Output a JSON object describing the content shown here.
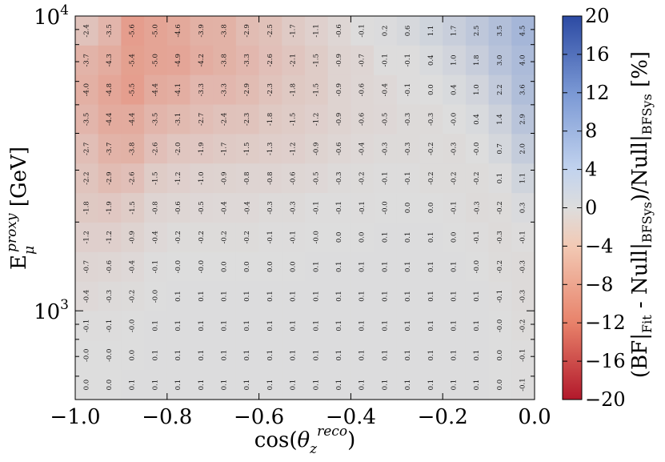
{
  "chart_data": {
    "type": "heatmap",
    "xlabel": "cos(θ_z^reco)",
    "ylabel": "E_μ^proxy [GeV]",
    "colorbar_label": "(BF|Fit - Null|BFSys)/Null|BFSys [%]",
    "x_ticks": [
      "−1.0",
      "−0.8",
      "−0.6",
      "−0.4",
      "−0.2",
      "0.0"
    ],
    "x_tick_values": [
      -1.0,
      -0.8,
      -0.6,
      -0.4,
      -0.2,
      0.0
    ],
    "y_ticks": [
      {
        "base": "10",
        "exp": "3",
        "value": 1000
      },
      {
        "base": "10",
        "exp": "4",
        "value": 10000
      }
    ],
    "xlim": [
      -1.0,
      0.0
    ],
    "ylim": [
      500,
      10000
    ],
    "y_scale": "log",
    "colorbar_ticks": [
      "20",
      "16",
      "12",
      "8",
      "4",
      "0",
      "−4",
      "−8",
      "−12",
      "−16",
      "−20"
    ],
    "colorbar_range": [
      -20,
      20
    ],
    "colormap": {
      "low": "#b2182b",
      "mid": "#dddddd",
      "high": "#2c4aa3"
    },
    "grid": false,
    "rows_top_to_bottom": [
      [
        "-2.4",
        "-3.5",
        "-5.6",
        "-5.0",
        "-4.6",
        "-3.9",
        "-3.8",
        "-2.9",
        "-2.5",
        "-1.7",
        "-1.1",
        "-0.6",
        "-0.1",
        "0.2",
        "0.6",
        "1.1",
        "1.7",
        "2.5",
        "3.5",
        "4.5"
      ],
      [
        "-3.7",
        "-4.3",
        "-5.4",
        "-5.0",
        "-4.9",
        "-4.2",
        "-3.8",
        "-3.3",
        "-2.6",
        "-2.1",
        "-1.5",
        "-0.9",
        "-0.7",
        "-0.1",
        "-0.1",
        "0.4",
        "1.0",
        "1.8",
        "3.0",
        "4.0"
      ],
      [
        "-4.0",
        "-4.8",
        "-5.5",
        "-4.4",
        "-4.1",
        "-3.3",
        "-3.3",
        "-2.9",
        "-2.3",
        "-1.8",
        "-1.5",
        "-0.9",
        "-0.6",
        "-0.4",
        "-0.1",
        "0.0",
        "0.4",
        "1.0",
        "2.2",
        "3.6"
      ],
      [
        "-3.5",
        "-4.4",
        "-4.4",
        "-3.5",
        "-3.1",
        "-2.7",
        "-2.4",
        "-2.3",
        "-1.8",
        "-1.5",
        "-1.2",
        "-0.9",
        "-0.6",
        "-0.5",
        "-0.3",
        "-0.3",
        "-0.0",
        "0.4",
        "1.4",
        "2.9"
      ],
      [
        "-2.7",
        "-3.7",
        "-3.8",
        "-2.6",
        "-2.0",
        "-1.9",
        "-1.7",
        "-1.5",
        "-1.3",
        "-1.2",
        "-0.9",
        "-0.6",
        "-0.4",
        "-0.3",
        "-0.3",
        "-0.2",
        "-0.3",
        "-0.0",
        "0.7",
        "2.0"
      ],
      [
        "-2.2",
        "-2.9",
        "-2.6",
        "-1.5",
        "-1.2",
        "-1.0",
        "-0.9",
        "-0.8",
        "-0.8",
        "-0.6",
        "-0.5",
        "-0.3",
        "-0.2",
        "-0.1",
        "-0.1",
        "-0.2",
        "-0.2",
        "-0.2",
        "0.1",
        "1.1"
      ],
      [
        "-1.8",
        "-1.9",
        "-1.5",
        "-0.8",
        "-0.6",
        "-0.5",
        "-0.4",
        "-0.4",
        "-0.3",
        "-0.3",
        "-0.1",
        "-0.1",
        "-0.1",
        "-0.0",
        "0.0",
        "0.0",
        "-0.1",
        "-0.3",
        "-0.2",
        "0.3"
      ],
      [
        "-1.2",
        "-1.2",
        "-0.9",
        "-0.4",
        "-0.2",
        "-0.2",
        "-0.2",
        "-0.2",
        "-0.1",
        "-0.1",
        "-0.0",
        "0.0",
        "0.0",
        "0.1",
        "0.1",
        "0.1",
        "0.0",
        "-0.1",
        "-0.3",
        "-0.1"
      ],
      [
        "-0.7",
        "-0.6",
        "-0.4",
        "-0.1",
        "-0.0",
        "-0.0",
        "0.0",
        "0.0",
        "0.0",
        "0.0",
        "0.1",
        "0.1",
        "0.1",
        "0.1",
        "0.1",
        "0.1",
        "0.1",
        "-0.0",
        "-0.2",
        "-0.3"
      ],
      [
        "-0.4",
        "-0.3",
        "-0.2",
        "-0.0",
        "0.1",
        "0.1",
        "0.1",
        "0.1",
        "0.1",
        "0.1",
        "0.1",
        "0.1",
        "0.1",
        "0.1",
        "0.1",
        "0.1",
        "0.1",
        "0.1",
        "-0.1",
        "-0.3"
      ],
      [
        "-0.1",
        "-0.1",
        "-0.0",
        "0.1",
        "0.1",
        "0.1",
        "0.1",
        "0.1",
        "0.1",
        "0.1",
        "0.1",
        "0.1",
        "0.1",
        "0.1",
        "0.1",
        "0.1",
        "0.1",
        "0.1",
        "-0.0",
        "-0.2"
      ],
      [
        "-0.0",
        "-0.0",
        "0.0",
        "0.1",
        "0.1",
        "0.1",
        "0.1",
        "0.1",
        "0.1",
        "0.1",
        "0.1",
        "0.1",
        "0.1",
        "0.1",
        "0.1",
        "0.1",
        "0.1",
        "0.1",
        "0.0",
        "-0.1"
      ],
      [
        "0.0",
        "0.0",
        "0.1",
        "0.1",
        "0.1",
        "0.1",
        "0.1",
        "0.1",
        "0.1",
        "0.1",
        "0.1",
        "0.1",
        "0.1",
        "0.1",
        "0.1",
        "0.1",
        "0.1",
        "0.1",
        "0.0",
        "-0.1"
      ]
    ]
  }
}
